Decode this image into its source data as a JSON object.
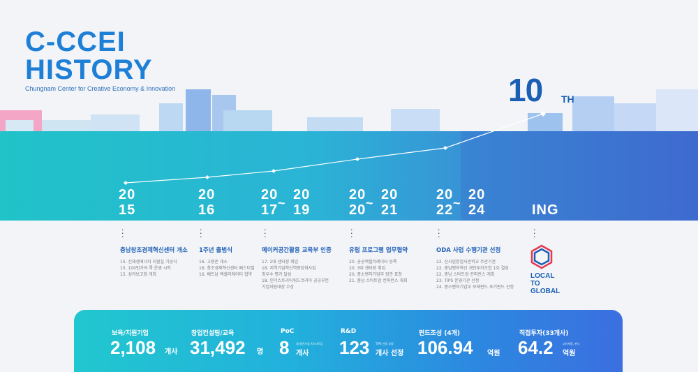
{
  "header": {
    "title_line1": "C-CCEI",
    "title_line2": "HISTORY",
    "subtitle": "Chungnam Center for Creative Economy & Innovation",
    "anniversary_number": "10",
    "anniversary_suffix": "TH"
  },
  "timeline": {
    "years": [
      {
        "top": "20",
        "bottom": "15"
      },
      {
        "top": "20",
        "bottom": "16"
      },
      {
        "top": "20",
        "bottom": "17",
        "tilde": "~",
        "top2": "20",
        "bottom2": "19"
      },
      {
        "top": "20",
        "bottom": "20",
        "tilde": "~",
        "top2": "20",
        "bottom2": "21"
      },
      {
        "top": "20",
        "bottom": "22",
        "tilde": "~",
        "top2": "20",
        "bottom2": "24"
      },
      {
        "label": "ING"
      }
    ],
    "milestones": [
      {
        "title": "충남창조경제혁신센터 개소",
        "items": [
          "15. 신재생에너지 지원실 기공식",
          "15. 100번가의 룩 운영 시작",
          "15. 성과보고회 개최"
        ]
      },
      {
        "title": "1주년 출범식",
        "items": [
          "16. 고용존 개소",
          "16. 창조경제혁신센터 페스티벌",
          "16. 베트남 액셀러레이터 협약"
        ]
      },
      {
        "title": "메이커공간활용 교육부 인증",
        "items": [
          "17. 2대 센터장 취임",
          "18. 지역기업혁신역량강화사업",
          "     최우수 평가 달성",
          "18. 인더스트리어워드코리아 공공부문",
          "     기업지원대상 수상"
        ]
      },
      {
        "title": "유럽 프로그램 업무협약",
        "items": [
          "20. 공공액셀러레이터 등록",
          "20. 3대 센터장 취임",
          "20. 중소벤처기업부 장관 표창",
          "21. 충남 스타트업 컨퍼런스 개최"
        ]
      },
      {
        "title": "ODA 사업 수행기관 선정",
        "items": [
          "22. 신사업창업사관학교 주관기관",
          "22. 충남벤처혁신 개인투자조합 1호 결성",
          "22. 충남 스타트업 컨퍼런스 개최",
          "23. TIPS 운영기관 선정",
          "24. 중소벤처기업부 모태펀드 초기펀드 선정"
        ]
      }
    ],
    "logo_lines": [
      "LOCAL",
      "TO",
      "GLOBAL"
    ]
  },
  "stats": [
    {
      "label": "보육/지원기업",
      "value": "2,108",
      "unit": "개사",
      "note": ""
    },
    {
      "label": "창업컨설팅/교육",
      "value": "31,492",
      "unit": "명",
      "note": ""
    },
    {
      "label": "PoC",
      "value": "8",
      "unit": "개사",
      "note": "대·중견기업 X스타트업"
    },
    {
      "label": "R&D",
      "value": "123",
      "unit": "개사 선정",
      "note": "TIPS 선정 포함"
    },
    {
      "label": "펀드조성 (4개)",
      "value": "106.94",
      "unit": "억원",
      "note": ""
    },
    {
      "label": "직접투자(33개사)",
      "value": "64.2",
      "unit": "억원",
      "note": "고유계정, 펀드"
    }
  ],
  "colors": {
    "accent": "#1e7fd6",
    "band_start": "#20c3c8",
    "band_end": "#3f6fd2",
    "milestone_title": "#1f5fb5"
  }
}
